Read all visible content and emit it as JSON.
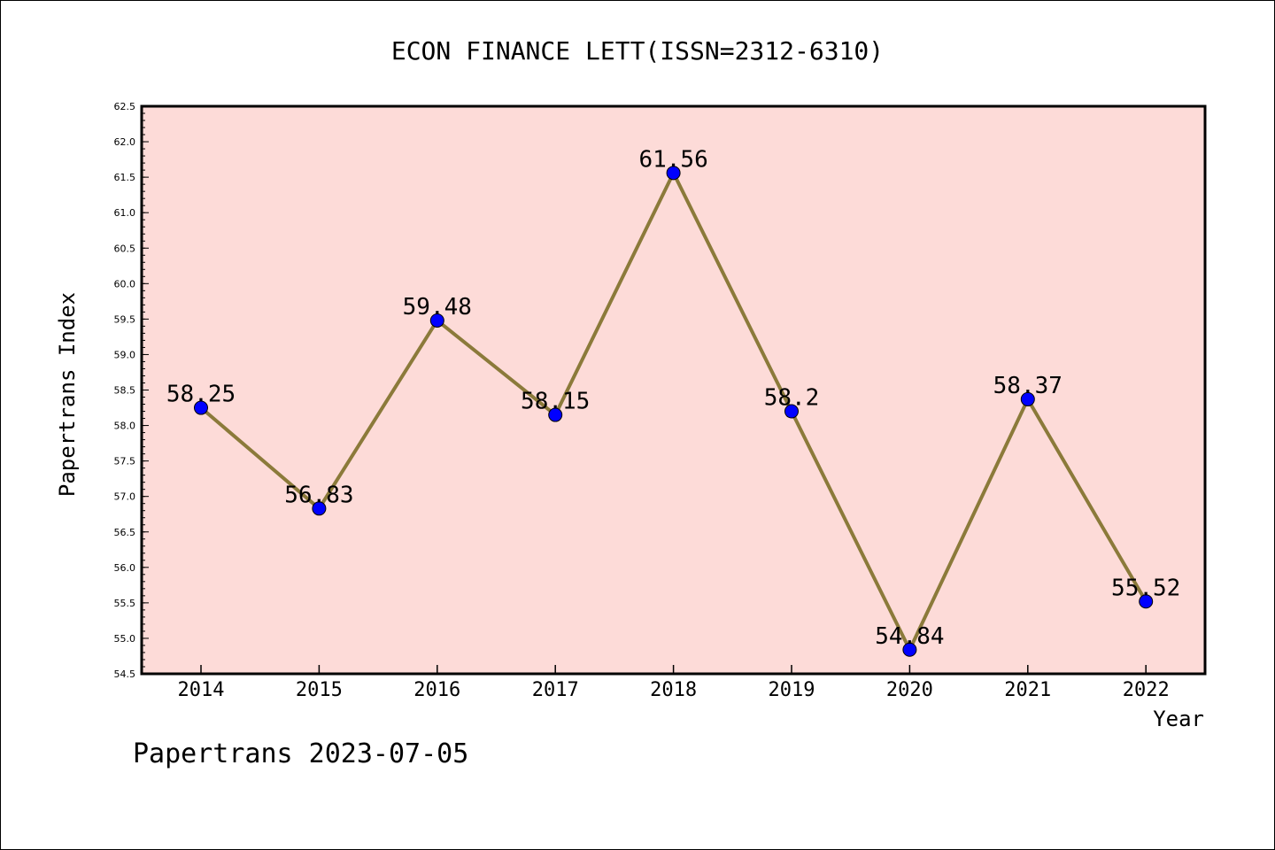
{
  "footer_text": "Papertrans 2023-07-05",
  "chart_data": {
    "type": "line",
    "title": "ECON FINANCE LETT(ISSN=2312-6310)",
    "xlabel": "Year",
    "ylabel": "Papertrans Index",
    "categories": [
      "2014",
      "2015",
      "2016",
      "2017",
      "2018",
      "2019",
      "2020",
      "2021",
      "2022"
    ],
    "values": [
      58.25,
      56.83,
      59.48,
      58.15,
      61.56,
      58.2,
      54.84,
      58.37,
      55.52
    ],
    "data_labels": [
      "58.25",
      "56.83",
      "59.48",
      "58.15",
      "61.56",
      "58.2",
      "54.84",
      "58.37",
      "55.52"
    ],
    "ylim": [
      54.5,
      62.5
    ],
    "yticks": [
      "54.5",
      "55.0",
      "55.5",
      "56.0",
      "56.5",
      "57.0",
      "57.5",
      "58.0",
      "58.5",
      "59.0",
      "59.5",
      "60.0",
      "60.5",
      "61.0",
      "61.5",
      "62.0",
      "62.5"
    ],
    "grid": false,
    "legend": "none",
    "colors": {
      "plot_background": "#fddbd8",
      "line": "#8b7a3a",
      "marker": "#0000ff",
      "axes": "#000000"
    }
  }
}
